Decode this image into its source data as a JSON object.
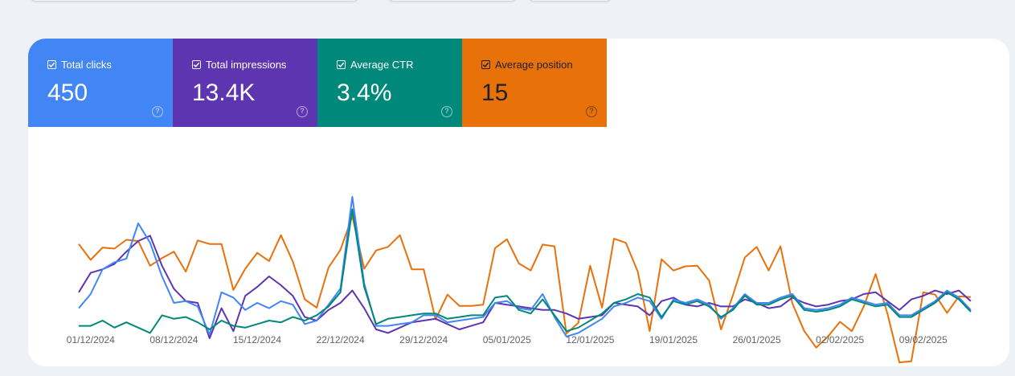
{
  "metrics": [
    {
      "label": "Total clicks",
      "value": "450",
      "color": "#4285f4",
      "checked": true
    },
    {
      "label": "Total impressions",
      "value": "13.4K",
      "color": "#5e35b1",
      "checked": true
    },
    {
      "label": "Average CTR",
      "value": "3.4%",
      "color": "#00897b",
      "checked": true
    },
    {
      "label": "Average position",
      "value": "15",
      "color": "#e8710a",
      "checked": true
    }
  ],
  "help_glyph": "?",
  "chart_data": {
    "type": "line",
    "x_ticks": [
      "01/12/2024",
      "08/12/2024",
      "15/12/2024",
      "22/12/2024",
      "29/12/2024",
      "05/01/2025",
      "12/01/2025",
      "19/01/2025",
      "26/01/2025",
      "02/02/2025",
      "09/02/2025"
    ],
    "first_date": "2024-11-30",
    "y_axis_visible": false,
    "grid": false,
    "series": [
      {
        "color": "#e8710a",
        "values": [
          38.3,
          29.3,
          36.3,
          35.7,
          40.7,
          40.0,
          26.0,
          30.3,
          34.0,
          22.7,
          40.3,
          38.3,
          38.3,
          12.3,
          24.3,
          33.3,
          28.7,
          43.3,
          28.3,
          7.0,
          2.3,
          25.0,
          35.0,
          54.0,
          24.3,
          34.7,
          36.7,
          43.3,
          24.0,
          24.0,
          -4.3,
          9.7,
          3.3,
          3.3,
          4.0,
          36.0,
          41.0,
          27.3,
          23.3,
          38.0,
          37.0,
          -12.3,
          -6.3,
          26.0,
          2.3,
          41.3,
          39.0,
          22.7,
          -11.0,
          29.7,
          23.3,
          25.7,
          26.0,
          17.7,
          -10.0,
          9.3,
          30.7,
          36.7,
          23.3,
          37.0,
          4.7,
          -11.0,
          -20.3,
          -14.0,
          -5.7,
          -11.0,
          3.0,
          21.3,
          -1.3,
          -28.7,
          -28.0,
          11.0,
          9.7,
          -0.7,
          8.7,
          8.3
        ]
      },
      {
        "color": "#5e35b1",
        "values": [
          11.0,
          22.0,
          24.0,
          27.0,
          34.0,
          40.0,
          43.0,
          26.0,
          13.0,
          6.0,
          5.0,
          -15.0,
          2.0,
          -11.0,
          9.0,
          14.0,
          20.0,
          15.0,
          9.0,
          -3.0,
          -5.0,
          1.0,
          5.0,
          12.0,
          2.0,
          -10.0,
          -12.0,
          -9.0,
          -6.0,
          -5.0,
          -4.0,
          -7.0,
          -10.0,
          -8.0,
          -6.0,
          5.0,
          4.0,
          3.0,
          2.0,
          1.0,
          1.0,
          -1.0,
          -4.0,
          -3.0,
          -2.0,
          5.0,
          4.0,
          3.0,
          -2.0,
          6.0,
          8.0,
          4.0,
          3.0,
          5.0,
          3.0,
          3.0,
          7.0,
          5.0,
          2.0,
          3.0,
          8.0,
          5.0,
          3.0,
          4.0,
          6.0,
          7.0,
          10.0,
          11.0,
          6.0,
          1.0,
          7.0,
          9.0,
          12.0,
          10.0,
          12.0,
          6.0
        ]
      },
      {
        "color": "#4285f4",
        "values": [
          2.0,
          10.0,
          24.0,
          28.0,
          30.0,
          50.0,
          39.0,
          20.0,
          5.0,
          6.0,
          3.0,
          -13.0,
          11.0,
          8.0,
          1.0,
          5.0,
          2.0,
          6.0,
          4.0,
          -7.0,
          -5.0,
          4.0,
          13.0,
          65.0,
          16.0,
          -8.0,
          -8.0,
          -7.0,
          -6.0,
          -2.0,
          -2.0,
          -6.0,
          -5.0,
          -4.0,
          -3.0,
          5.0,
          6.0,
          2.0,
          1.0,
          10.0,
          -3.0,
          -14.0,
          -12.0,
          -8.0,
          -4.0,
          3.0,
          5.0,
          8.0,
          6.0,
          -4.0,
          7.0,
          5.0,
          7.0,
          4.0,
          -4.0,
          2.0,
          10.0,
          5.0,
          5.0,
          8.0,
          10.0,
          2.0,
          1.0,
          2.0,
          4.0,
          8.0,
          6.0,
          4.0,
          5.0,
          -2.0,
          -2.0,
          2.0,
          6.0,
          12.0,
          8.0,
          1.0
        ]
      },
      {
        "color": "#00897b",
        "values": [
          -8.0,
          -8.0,
          -5.0,
          -9.0,
          -6.0,
          -9.0,
          -12.0,
          -2.0,
          -4.0,
          -3.0,
          -6.0,
          -10.0,
          -5.0,
          -8.0,
          -9.0,
          -7.0,
          -5.0,
          -6.0,
          -3.0,
          -5.0,
          -2.0,
          3.0,
          11.0,
          58.0,
          14.0,
          -7.0,
          -4.0,
          -3.0,
          -2.0,
          -1.0,
          -1.0,
          -4.0,
          -3.0,
          -2.0,
          -2.0,
          8.0,
          9.0,
          1.0,
          -1.0,
          7.0,
          -2.0,
          -11.0,
          -9.0,
          -5.0,
          -1.0,
          5.0,
          7.0,
          10.0,
          8.0,
          -3.0,
          6.0,
          4.0,
          6.0,
          3.0,
          -3.0,
          1.0,
          9.0,
          4.0,
          4.0,
          7.0,
          9.0,
          1.0,
          0.0,
          1.0,
          3.0,
          7.0,
          5.0,
          3.0,
          4.0,
          -3.0,
          -3.0,
          1.0,
          5.0,
          11.0,
          7.0,
          0.0
        ]
      }
    ]
  }
}
